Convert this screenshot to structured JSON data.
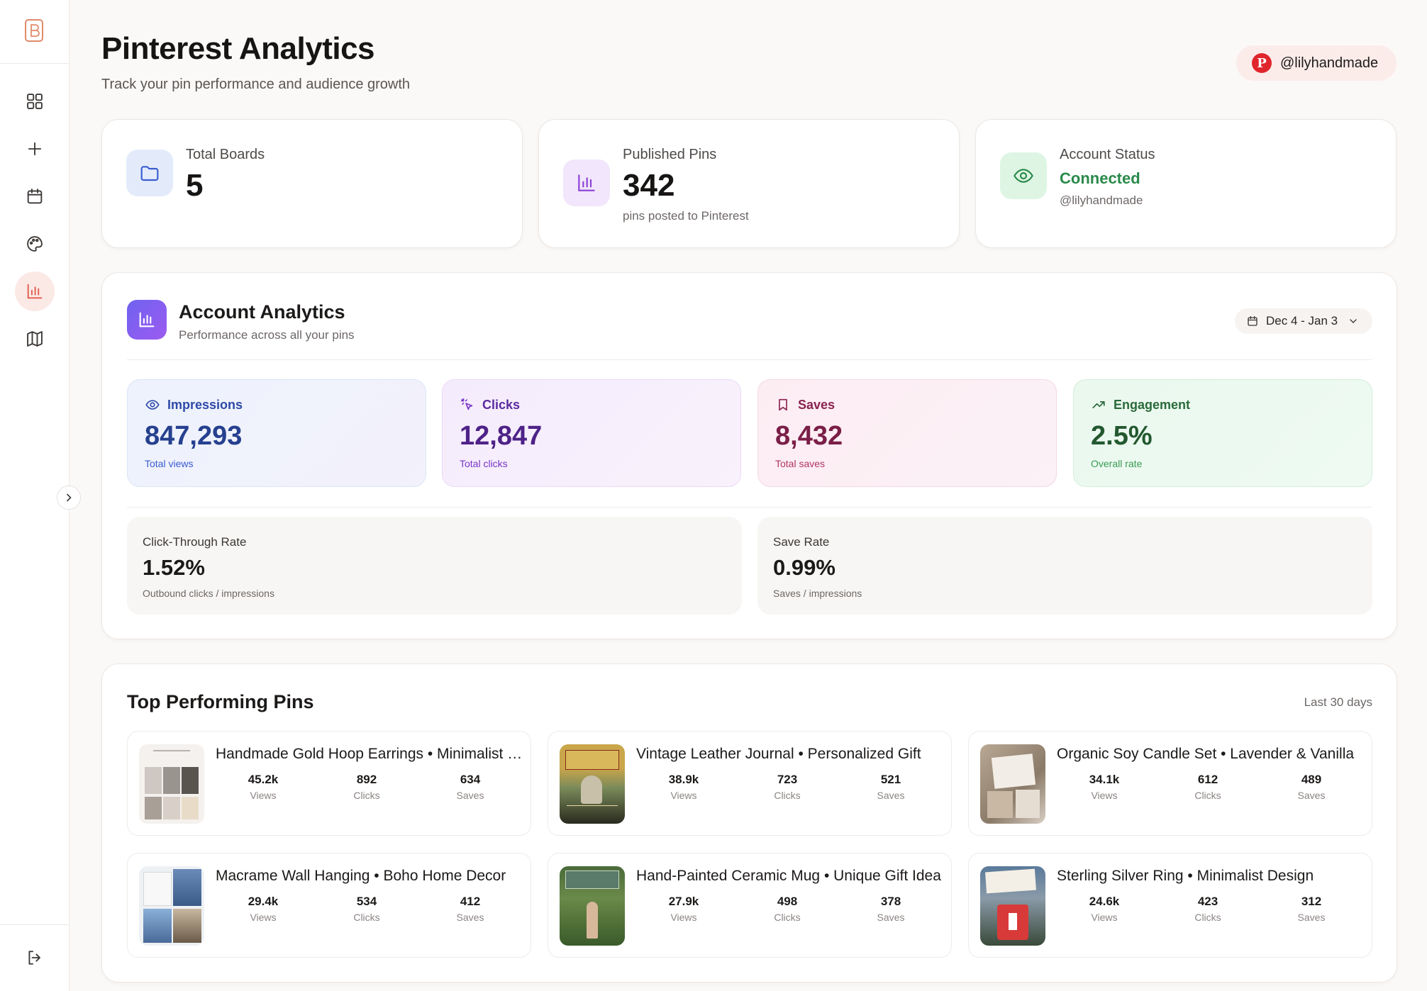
{
  "header": {
    "title": "Pinterest Analytics",
    "subtitle": "Track your pin performance and audience growth",
    "account_handle": "@lilyhandmade"
  },
  "sidebar": {
    "items": [
      {
        "icon": "grid-icon"
      },
      {
        "icon": "plus-icon"
      },
      {
        "icon": "calendar-icon"
      },
      {
        "icon": "palette-icon"
      },
      {
        "icon": "bar-chart-icon",
        "active": true
      },
      {
        "icon": "map-icon"
      }
    ],
    "logout_icon": "logout-icon"
  },
  "stats": {
    "boards": {
      "label": "Total Boards",
      "value": "5"
    },
    "pins": {
      "label": "Published Pins",
      "value": "342",
      "sub": "pins posted to Pinterest"
    },
    "status": {
      "label": "Account Status",
      "value": "Connected",
      "sub": "@lilyhandmade"
    }
  },
  "analytics": {
    "title": "Account Analytics",
    "subtitle": "Performance across all your pins",
    "date_range": "Dec 4 - Jan 3",
    "metrics": {
      "impressions": {
        "label": "Impressions",
        "value": "847,293",
        "sub": "Total views"
      },
      "clicks": {
        "label": "Clicks",
        "value": "12,847",
        "sub": "Total clicks"
      },
      "saves": {
        "label": "Saves",
        "value": "8,432",
        "sub": "Total saves"
      },
      "engagement": {
        "label": "Engagement",
        "value": "2.5%",
        "sub": "Overall rate"
      }
    },
    "ctr": {
      "label": "Click-Through Rate",
      "value": "1.52%",
      "sub": "Outbound clicks / impressions"
    },
    "save_rate": {
      "label": "Save Rate",
      "value": "0.99%",
      "sub": "Saves / impressions"
    }
  },
  "top_pins": {
    "title": "Top Performing Pins",
    "period": "Last 30 days",
    "stat_labels": {
      "views": "Views",
      "clicks": "Clicks",
      "saves": "Saves"
    },
    "items": [
      {
        "title": "Handmade Gold Hoop Earrings • Minimalist Jewelry",
        "views": "45.2k",
        "clicks": "892",
        "saves": "634"
      },
      {
        "title": "Vintage Leather Journal • Personalized Gift",
        "views": "38.9k",
        "clicks": "723",
        "saves": "521"
      },
      {
        "title": "Organic Soy Candle Set • Lavender & Vanilla",
        "views": "34.1k",
        "clicks": "612",
        "saves": "489"
      },
      {
        "title": "Macrame Wall Hanging • Boho Home Decor",
        "views": "29.4k",
        "clicks": "534",
        "saves": "412"
      },
      {
        "title": "Hand-Painted Ceramic Mug • Unique Gift Idea",
        "views": "27.9k",
        "clicks": "498",
        "saves": "378"
      },
      {
        "title": "Sterling Silver Ring • Minimalist Design",
        "views": "24.6k",
        "clicks": "423",
        "saves": "312"
      }
    ]
  },
  "colors": {
    "accent": "#e05a4a",
    "impressions": "#2e4aa8",
    "clicks": "#5b2a9e",
    "saves": "#8a2350",
    "engagement": "#2a6a3a",
    "connected": "#2a8a4a"
  }
}
